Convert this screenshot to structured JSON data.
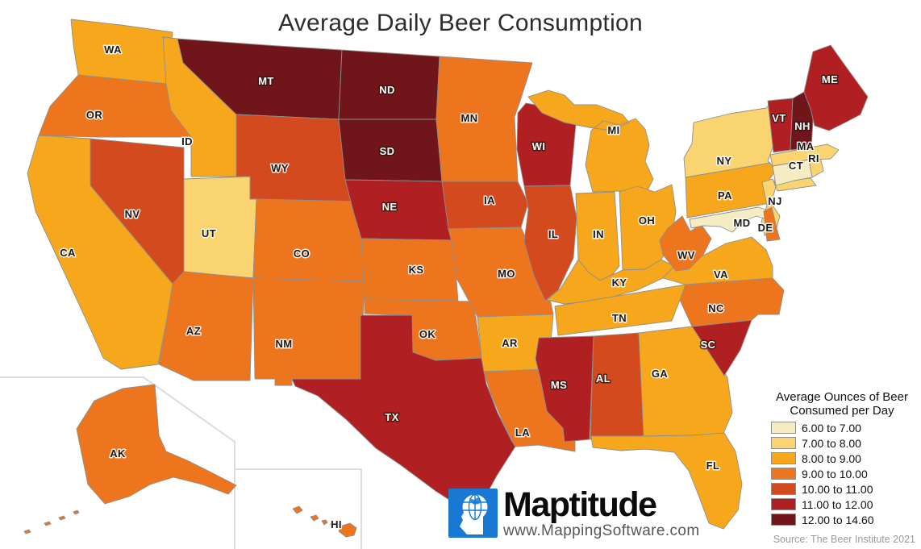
{
  "title": "Average Daily Beer Consumption",
  "legend": {
    "title": [
      "Average Ounces of Beer",
      "Consumed per Day"
    ],
    "items": [
      {
        "label": "6.00 to 7.00",
        "color": "#F5ECC3"
      },
      {
        "label": "7.00 to 8.00",
        "color": "#FAD471"
      },
      {
        "label": "8.00 to 9.00",
        "color": "#F6A71B"
      },
      {
        "label": "9.00 to 10.00",
        "color": "#ED751D"
      },
      {
        "label": "10.00 to 11.00",
        "color": "#D24A1E"
      },
      {
        "label": "11.00 to 12.00",
        "color": "#B02023"
      },
      {
        "label": "12.00 to 14.60",
        "color": "#701519"
      }
    ]
  },
  "source": "Source: The Beer Institute 2021",
  "branding": {
    "name": "Maptitude",
    "url": "www.MappingSoftware.com",
    "logo_icon": "head-globe-icon",
    "logo_color": "#1878D2"
  },
  "map": {
    "type": "choropleth",
    "metric": "Average Ounces of Beer Consumed per Day",
    "states": [
      {
        "abbr": "WA",
        "bucket": 2,
        "range": "8.00 to 9.00"
      },
      {
        "abbr": "OR",
        "bucket": 3,
        "range": "9.00 to 10.00"
      },
      {
        "abbr": "CA",
        "bucket": 2,
        "range": "8.00 to 9.00"
      },
      {
        "abbr": "NV",
        "bucket": 4,
        "range": "10.00 to 11.00"
      },
      {
        "abbr": "ID",
        "bucket": 2,
        "range": "8.00 to 9.00"
      },
      {
        "abbr": "MT",
        "bucket": 6,
        "range": "12.00 to 14.60"
      },
      {
        "abbr": "WY",
        "bucket": 4,
        "range": "10.00 to 11.00"
      },
      {
        "abbr": "UT",
        "bucket": 1,
        "range": "7.00 to 8.00"
      },
      {
        "abbr": "CO",
        "bucket": 3,
        "range": "9.00 to 10.00"
      },
      {
        "abbr": "AZ",
        "bucket": 3,
        "range": "9.00 to 10.00"
      },
      {
        "abbr": "NM",
        "bucket": 3,
        "range": "9.00 to 10.00"
      },
      {
        "abbr": "ND",
        "bucket": 6,
        "range": "12.00 to 14.60"
      },
      {
        "abbr": "SD",
        "bucket": 6,
        "range": "12.00 to 14.60"
      },
      {
        "abbr": "NE",
        "bucket": 5,
        "range": "11.00 to 12.00"
      },
      {
        "abbr": "KS",
        "bucket": 3,
        "range": "9.00 to 10.00"
      },
      {
        "abbr": "OK",
        "bucket": 3,
        "range": "9.00 to 10.00"
      },
      {
        "abbr": "TX",
        "bucket": 5,
        "range": "11.00 to 12.00"
      },
      {
        "abbr": "MN",
        "bucket": 3,
        "range": "9.00 to 10.00"
      },
      {
        "abbr": "IA",
        "bucket": 4,
        "range": "10.00 to 11.00"
      },
      {
        "abbr": "MO",
        "bucket": 3,
        "range": "9.00 to 10.00"
      },
      {
        "abbr": "AR",
        "bucket": 2,
        "range": "8.00 to 9.00"
      },
      {
        "abbr": "LA",
        "bucket": 3,
        "range": "9.00 to 10.00"
      },
      {
        "abbr": "WI",
        "bucket": 5,
        "range": "11.00 to 12.00"
      },
      {
        "abbr": "IL",
        "bucket": 4,
        "range": "10.00 to 11.00"
      },
      {
        "abbr": "MI",
        "bucket": 2,
        "range": "8.00 to 9.00"
      },
      {
        "abbr": "IN",
        "bucket": 2,
        "range": "8.00 to 9.00"
      },
      {
        "abbr": "OH",
        "bucket": 2,
        "range": "8.00 to 9.00"
      },
      {
        "abbr": "KY",
        "bucket": 2,
        "range": "8.00 to 9.00"
      },
      {
        "abbr": "TN",
        "bucket": 2,
        "range": "8.00 to 9.00"
      },
      {
        "abbr": "MS",
        "bucket": 5,
        "range": "11.00 to 12.00"
      },
      {
        "abbr": "AL",
        "bucket": 4,
        "range": "10.00 to 11.00"
      },
      {
        "abbr": "GA",
        "bucket": 2,
        "range": "8.00 to 9.00"
      },
      {
        "abbr": "FL",
        "bucket": 2,
        "range": "8.00 to 9.00"
      },
      {
        "abbr": "SC",
        "bucket": 5,
        "range": "11.00 to 12.00"
      },
      {
        "abbr": "NC",
        "bucket": 3,
        "range": "9.00 to 10.00"
      },
      {
        "abbr": "VA",
        "bucket": 2,
        "range": "8.00 to 9.00"
      },
      {
        "abbr": "WV",
        "bucket": 3,
        "range": "9.00 to 10.00"
      },
      {
        "abbr": "PA",
        "bucket": 2,
        "range": "8.00 to 9.00"
      },
      {
        "abbr": "NY",
        "bucket": 1,
        "range": "7.00 to 8.00"
      },
      {
        "abbr": "NJ",
        "bucket": 1,
        "range": "7.00 to 8.00"
      },
      {
        "abbr": "MD",
        "bucket": 0,
        "range": "6.00 to 7.00"
      },
      {
        "abbr": "DE",
        "bucket": 3,
        "range": "9.00 to 10.00"
      },
      {
        "abbr": "CT",
        "bucket": 0,
        "range": "6.00 to 7.00"
      },
      {
        "abbr": "RI",
        "bucket": 1,
        "range": "7.00 to 8.00"
      },
      {
        "abbr": "MA",
        "bucket": 1,
        "range": "7.00 to 8.00"
      },
      {
        "abbr": "VT",
        "bucket": 5,
        "range": "11.00 to 12.00"
      },
      {
        "abbr": "NH",
        "bucket": 6,
        "range": "12.00 to 14.60"
      },
      {
        "abbr": "ME",
        "bucket": 5,
        "range": "11.00 to 12.00"
      },
      {
        "abbr": "AK",
        "bucket": 3,
        "range": "9.00 to 10.00"
      },
      {
        "abbr": "HI",
        "bucket": 3,
        "range": "9.00 to 10.00"
      }
    ]
  }
}
